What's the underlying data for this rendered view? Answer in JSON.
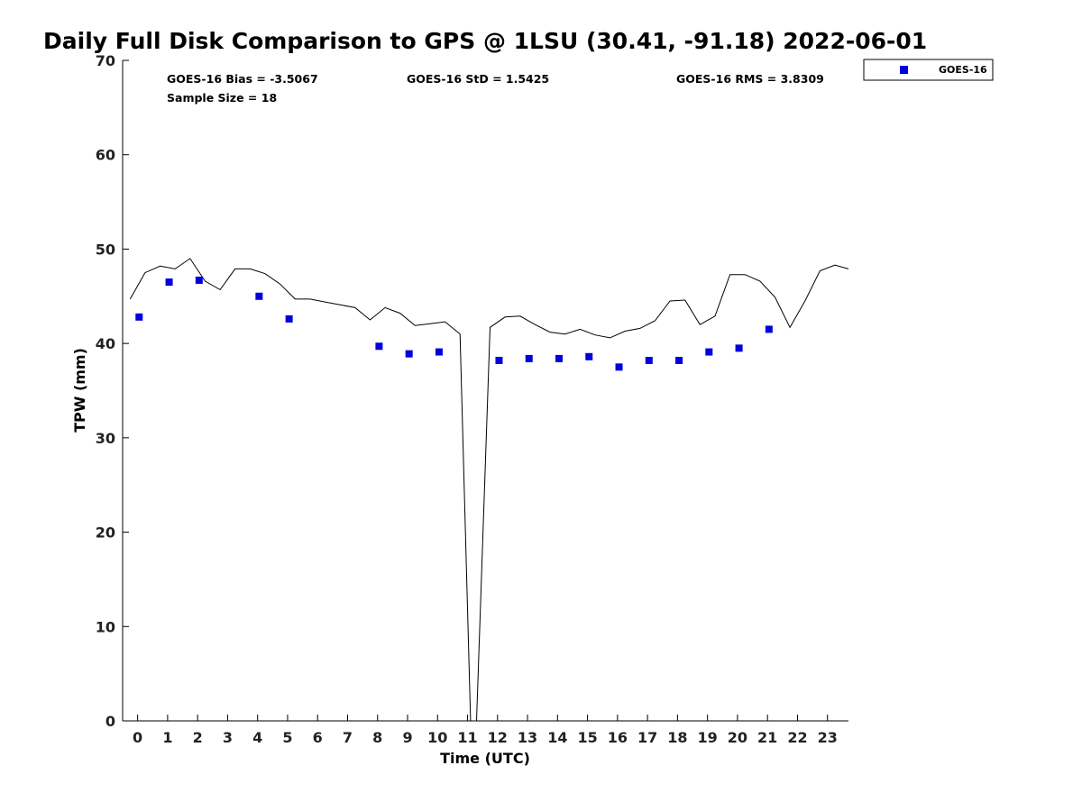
{
  "chart_data": {
    "type": "scatter",
    "title": "Daily Full Disk Comparison to GPS @ 1LSU (30.41, -91.18) 2022-06-01",
    "xlabel": "Time (UTC)",
    "ylabel": "TPW (mm)",
    "xlim": [
      -0.5,
      23.7
    ],
    "ylim": [
      0,
      70
    ],
    "x_ticks": [
      "0",
      "1",
      "2",
      "3",
      "4",
      "5",
      "6",
      "7",
      "8",
      "9",
      "10",
      "11",
      "12",
      "13",
      "14",
      "15",
      "16",
      "17",
      "18",
      "19",
      "20",
      "21",
      "22",
      "23"
    ],
    "y_ticks": [
      "0",
      "10",
      "20",
      "30",
      "40",
      "50",
      "60",
      "70"
    ],
    "stats": {
      "bias": "GOES-16 Bias = -3.5067",
      "std": "GOES-16 StD = 1.5425",
      "rms": "GOES-16 RMS = 3.8309",
      "sample": "Sample Size = 18"
    },
    "legend": {
      "position": "top-right",
      "entries": [
        "GOES-16"
      ]
    },
    "series": [
      {
        "name": "GOES-16",
        "type": "scatter",
        "color": "#0000dd",
        "points": [
          [
            0.05,
            42.8
          ],
          [
            1.05,
            46.5
          ],
          [
            2.05,
            46.7
          ],
          [
            4.05,
            45.0
          ],
          [
            5.05,
            42.6
          ],
          [
            8.05,
            39.7
          ],
          [
            9.05,
            38.9
          ],
          [
            10.05,
            39.1
          ],
          [
            12.05,
            38.2
          ],
          [
            13.05,
            38.4
          ],
          [
            14.05,
            38.4
          ],
          [
            15.05,
            38.6
          ],
          [
            16.05,
            37.5
          ],
          [
            17.05,
            38.2
          ],
          [
            18.05,
            38.2
          ],
          [
            19.05,
            39.1
          ],
          [
            20.05,
            39.5
          ],
          [
            21.05,
            41.5
          ]
        ]
      },
      {
        "type": "line",
        "color": "#000000",
        "points": [
          [
            -0.25,
            44.7
          ],
          [
            0.25,
            47.5
          ],
          [
            0.75,
            48.2
          ],
          [
            1.25,
            47.9
          ],
          [
            1.75,
            49.0
          ],
          [
            2.25,
            46.6
          ],
          [
            2.75,
            45.7
          ],
          [
            3.25,
            47.9
          ],
          [
            3.75,
            47.9
          ],
          [
            4.25,
            47.4
          ],
          [
            4.75,
            46.3
          ],
          [
            5.25,
            44.7
          ],
          [
            5.75,
            44.7
          ],
          [
            6.25,
            44.4
          ],
          [
            6.75,
            44.1
          ],
          [
            7.25,
            43.8
          ],
          [
            7.75,
            42.5
          ],
          [
            8.25,
            43.8
          ],
          [
            8.75,
            43.2
          ],
          [
            9.25,
            41.9
          ],
          [
            9.75,
            42.1
          ],
          [
            10.25,
            42.3
          ],
          [
            10.75,
            41.0
          ],
          [
            11.1,
            0.0
          ],
          [
            11.3,
            0.0
          ],
          [
            11.75,
            41.7
          ],
          [
            12.25,
            42.8
          ],
          [
            12.75,
            42.9
          ],
          [
            13.25,
            42.0
          ],
          [
            13.75,
            41.2
          ],
          [
            14.25,
            41.0
          ],
          [
            14.75,
            41.5
          ],
          [
            15.25,
            40.9
          ],
          [
            15.75,
            40.6
          ],
          [
            16.25,
            41.3
          ],
          [
            16.75,
            41.6
          ],
          [
            17.25,
            42.4
          ],
          [
            17.75,
            44.5
          ],
          [
            18.25,
            44.6
          ],
          [
            18.75,
            42.0
          ],
          [
            19.25,
            42.9
          ],
          [
            19.75,
            47.3
          ],
          [
            20.25,
            47.3
          ],
          [
            20.75,
            46.6
          ],
          [
            21.25,
            44.9
          ],
          [
            21.75,
            41.7
          ],
          [
            22.25,
            44.5
          ],
          [
            22.75,
            47.7
          ],
          [
            23.25,
            48.3
          ],
          [
            23.7,
            47.9
          ]
        ]
      }
    ]
  }
}
